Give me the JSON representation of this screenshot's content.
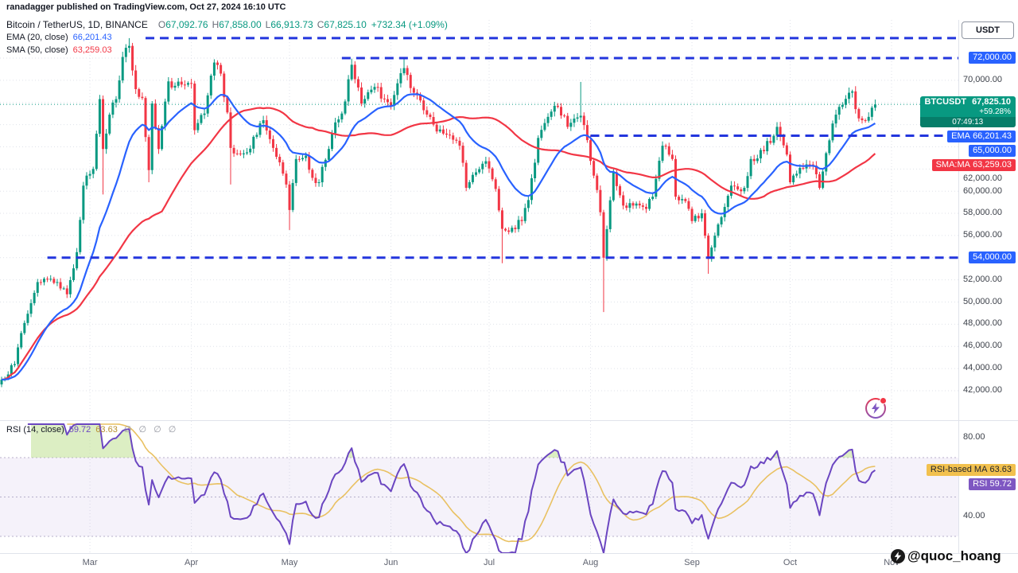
{
  "attribution": "ranadagger published on TradingView.com, Oct 27, 2024 16:10 UTC",
  "watermark": {
    "text": "@quoc_hoang"
  },
  "symbol_legend": {
    "title": "Bitcoin / TetherUS, 1D, BINANCE",
    "o_label": "O",
    "o": "67,092.76",
    "h_label": "H",
    "h": "67,858.00",
    "l_label": "L",
    "l": "66,913.73",
    "c_label": "C",
    "c": "67,825.10",
    "change": "+732.34 (+1.09%)"
  },
  "ema_legend": {
    "label": "EMA (20, close)",
    "value": "66,201.43"
  },
  "sma_legend": {
    "label": "SMA (50, close)",
    "value": "63,259.03"
  },
  "rsi_legend": {
    "label": "RSI (14, close)",
    "rsi_value": "59.72",
    "ma_value": "63.63",
    "hidden": "∅ ∅ ∅ ∅"
  },
  "price_axis": {
    "currency": "USDT",
    "ticks": [
      70000,
      62000,
      60000,
      58000,
      56000,
      52000,
      50000,
      48000,
      46000,
      44000,
      42000
    ],
    "last_box": {
      "symbol": "BTCUSDT",
      "price": "67,825.10",
      "change_pct": "+59.28%",
      "countdown": "07:49:13"
    },
    "ema_box": {
      "label": "EMA",
      "value": "66,201.43"
    },
    "sma_box": {
      "label": "SMA:MA",
      "value": "63,259.03"
    }
  },
  "rsi_axis": {
    "ticks": [
      {
        "value": 80,
        "label": "80.00"
      },
      {
        "value": 40,
        "label": "40.00"
      }
    ],
    "ma_box": {
      "label": "RSI-based MA",
      "value": "63.63"
    },
    "rsi_box": {
      "label": "RSI",
      "value": "59.72"
    }
  },
  "time_axis": {
    "months": [
      {
        "label": "Mar",
        "day": 27
      },
      {
        "label": "Apr",
        "day": 58
      },
      {
        "label": "May",
        "day": 88
      },
      {
        "label": "Jun",
        "day": 119
      },
      {
        "label": "Jul",
        "day": 149
      },
      {
        "label": "Aug",
        "day": 180
      },
      {
        "label": "Sep",
        "day": 211
      },
      {
        "label": "Oct",
        "day": 241
      },
      {
        "label": "Nov",
        "day": 272
      }
    ]
  },
  "colors": {
    "up": "#089981",
    "down": "#f23645",
    "ema": "#2962ff",
    "sma": "#f23645",
    "level": "#2336dd",
    "grid": "#dfe2ea",
    "separator": "#e0e3eb",
    "rsi": "#6b46c1",
    "rsi_ma": "#e9c162",
    "rsi_band": "rgba(126,87,194,0.08)",
    "rsi_guide": "#9b93b8",
    "rsi_fill": "rgba(186,222,135,0.5)",
    "last_line": "#089981"
  },
  "chart_data": {
    "type": "candlestick",
    "title": "Bitcoin / TetherUS, 1D, BINANCE",
    "x_unit": "daily bars, day 0 = early Feb 2024, last day = Oct 27 2024",
    "price_range_visible": [
      39200,
      75445
    ],
    "rsi_range_visible": [
      21.5,
      87
    ],
    "last": {
      "price": 67825.1,
      "ema20": 66201.43,
      "sma50": 63259.03,
      "rsi14": 59.72,
      "rsi_ma": 63.63
    },
    "price_keyframes": [
      [
        0,
        43000
      ],
      [
        4,
        44400
      ],
      [
        6,
        47200
      ],
      [
        9,
        49900
      ],
      [
        11,
        51800
      ],
      [
        13,
        52100
      ],
      [
        17,
        51800
      ],
      [
        20,
        50700
      ],
      [
        23,
        54500
      ],
      [
        25,
        60500
      ],
      [
        26,
        61400
      ],
      [
        28,
        62000
      ],
      [
        30,
        68300
      ],
      [
        31,
        63800
      ],
      [
        33,
        66900
      ],
      [
        35,
        68300
      ],
      [
        37,
        72100
      ],
      [
        39,
        73100
      ],
      [
        41,
        69200
      ],
      [
        43,
        68400
      ],
      [
        45,
        61900
      ],
      [
        46,
        67900
      ],
      [
        48,
        63800
      ],
      [
        51,
        69900
      ],
      [
        53,
        69500
      ],
      [
        56,
        69600
      ],
      [
        58,
        69700
      ],
      [
        59,
        65500
      ],
      [
        62,
        67000
      ],
      [
        65,
        71600
      ],
      [
        67,
        70600
      ],
      [
        69,
        67100
      ],
      [
        70,
        63900
      ],
      [
        72,
        63400
      ],
      [
        75,
        63500
      ],
      [
        77,
        64900
      ],
      [
        80,
        66400
      ],
      [
        84,
        63100
      ],
      [
        87,
        60600
      ],
      [
        88,
        58300
      ],
      [
        90,
        62900
      ],
      [
        93,
        63200
      ],
      [
        95,
        61200
      ],
      [
        97,
        60800
      ],
      [
        102,
        66200
      ],
      [
        104,
        67000
      ],
      [
        107,
        71400
      ],
      [
        108,
        70100
      ],
      [
        110,
        67900
      ],
      [
        114,
        69400
      ],
      [
        117,
        68300
      ],
      [
        119,
        67700
      ],
      [
        123,
        71100
      ],
      [
        125,
        69300
      ],
      [
        129,
        67300
      ],
      [
        132,
        66000
      ],
      [
        136,
        65100
      ],
      [
        140,
        64100
      ],
      [
        142,
        60300
      ],
      [
        145,
        61700
      ],
      [
        148,
        62700
      ],
      [
        151,
        60200
      ],
      [
        153,
        56600
      ],
      [
        156,
        56700
      ],
      [
        159,
        57300
      ],
      [
        161,
        59200
      ],
      [
        164,
        64800
      ],
      [
        167,
        66700
      ],
      [
        170,
        67600
      ],
      [
        173,
        65800
      ],
      [
        177,
        66800
      ],
      [
        179,
        64600
      ],
      [
        181,
        61400
      ],
      [
        183,
        58100
      ],
      [
        184,
        54000
      ],
      [
        187,
        61700
      ],
      [
        190,
        58700
      ],
      [
        193,
        58700
      ],
      [
        197,
        58400
      ],
      [
        199,
        59500
      ],
      [
        202,
        64100
      ],
      [
        205,
        62900
      ],
      [
        206,
        59500
      ],
      [
        209,
        59100
      ],
      [
        211,
        57300
      ],
      [
        214,
        58000
      ],
      [
        216,
        53900
      ],
      [
        219,
        57000
      ],
      [
        223,
        60500
      ],
      [
        227,
        60300
      ],
      [
        229,
        62900
      ],
      [
        233,
        63600
      ],
      [
        237,
        65800
      ],
      [
        240,
        63300
      ],
      [
        241,
        60800
      ],
      [
        244,
        62100
      ],
      [
        248,
        62300
      ],
      [
        250,
        60300
      ],
      [
        254,
        66100
      ],
      [
        256,
        67600
      ],
      [
        260,
        69000
      ],
      [
        261,
        67400
      ],
      [
        263,
        66400
      ],
      [
        265,
        66700
      ],
      [
        267,
        67825.1
      ]
    ],
    "low_wicks": [
      [
        31,
        59700
      ],
      [
        45,
        60800
      ],
      [
        70,
        60600
      ],
      [
        88,
        56500
      ],
      [
        153,
        53500
      ],
      [
        184,
        49100
      ],
      [
        216,
        52550
      ]
    ],
    "high_wicks": [
      [
        39,
        73800
      ],
      [
        107,
        71950
      ],
      [
        123,
        71950
      ],
      [
        177,
        69850
      ]
    ],
    "levels": [
      {
        "price": 73800,
        "from_day": 44,
        "label": ""
      },
      {
        "price": 72000,
        "from_day": 104,
        "label": "72,000.00"
      },
      {
        "price": 65000,
        "from_day": 180,
        "label": "65,000.00"
      },
      {
        "price": 54000,
        "from_day": 14,
        "label": "54,000.00"
      }
    ],
    "indicators": [
      {
        "name": "EMA",
        "period": 20,
        "source": "close",
        "color": "#2962ff"
      },
      {
        "name": "SMA",
        "period": 50,
        "source": "close",
        "color": "#f23645"
      },
      {
        "name": "RSI",
        "period": 14,
        "source": "close",
        "color": "#6b46c1"
      },
      {
        "name": "RSI-based MA",
        "period": 14,
        "source": "RSI",
        "color": "#e9c162"
      }
    ]
  }
}
